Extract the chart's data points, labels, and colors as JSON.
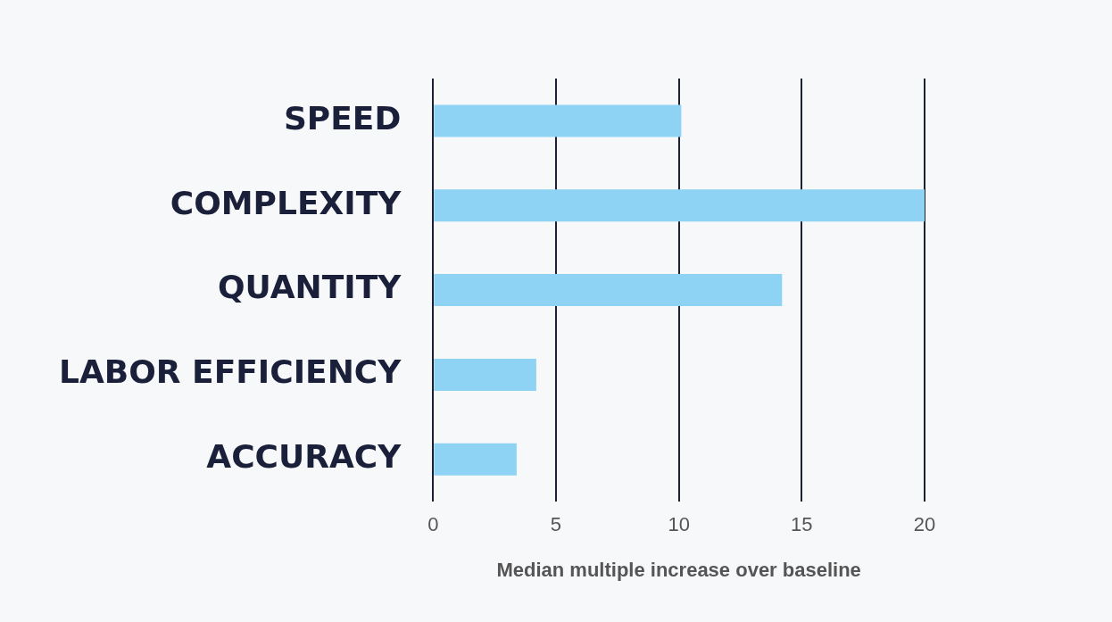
{
  "chart_data": {
    "type": "bar",
    "orientation": "horizontal",
    "xlabel": "Median multiple increase over baseline",
    "categories": [
      "SPEED",
      "COMPLEXITY",
      "QUANTITY",
      "LABOR EFFICIENCY",
      "ACCURACY"
    ],
    "values": [
      10.1,
      20,
      14.2,
      4.2,
      3.4
    ],
    "color": "#8fd3f4",
    "xlim": [
      0,
      20
    ],
    "xticks": [
      0,
      5,
      10,
      15,
      20
    ],
    "grid": "x"
  }
}
